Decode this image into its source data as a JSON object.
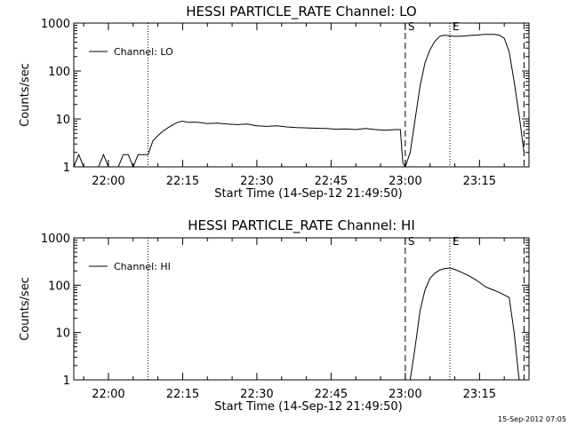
{
  "timestamp": "15-Sep-2012 07:05",
  "chart_data": [
    {
      "type": "line",
      "title": "HESSI PARTICLE_RATE Channel: LO",
      "xlabel": "Start Time (14-Sep-12 21:49:50)",
      "ylabel": "Counts/sec",
      "yscale": "log",
      "ylim": [
        1,
        1000
      ],
      "xlim": [
        "21:53",
        "23:25"
      ],
      "xticks": [
        "22:00",
        "22:15",
        "22:30",
        "22:45",
        "23:00",
        "23:15"
      ],
      "yticks": [
        "1",
        "10",
        "100",
        "1000"
      ],
      "grid": false,
      "legend": {
        "position": "top-left",
        "entries": [
          "Channel: LO"
        ]
      },
      "vlines": [
        {
          "time": "22:08",
          "style": "dotted",
          "label": ""
        },
        {
          "time": "23:00",
          "style": "dashed",
          "label": "S"
        },
        {
          "time": "23:09",
          "style": "dotted",
          "label": "E"
        },
        {
          "time": "23:24",
          "style": "dashed",
          "label": ""
        },
        {
          "time": "23:25",
          "style": "dotted",
          "label": ""
        }
      ],
      "series": [
        {
          "name": "Channel: LO",
          "points": [
            [
              "21:53",
              1
            ],
            [
              "21:54",
              1.8
            ],
            [
              "21:55",
              1
            ],
            [
              "21:56",
              1
            ],
            [
              "21:57",
              1
            ],
            [
              "21:58",
              1
            ],
            [
              "21:59",
              1.8
            ],
            [
              "22:00",
              1
            ],
            [
              "22:01",
              1
            ],
            [
              "22:02",
              1
            ],
            [
              "22:03",
              1.8
            ],
            [
              "22:04",
              1.8
            ],
            [
              "22:05",
              1
            ],
            [
              "22:06",
              1.8
            ],
            [
              "22:07",
              1.8
            ],
            [
              "22:08",
              1.8
            ],
            [
              "22:09",
              3.5
            ],
            [
              "22:10",
              4.5
            ],
            [
              "22:11",
              5.5
            ],
            [
              "22:12",
              6.5
            ],
            [
              "22:13",
              7.5
            ],
            [
              "22:14",
              8.5
            ],
            [
              "22:15",
              9
            ],
            [
              "22:16",
              8.5
            ],
            [
              "22:18",
              8.5
            ],
            [
              "22:20",
              8
            ],
            [
              "22:22",
              8.2
            ],
            [
              "22:24",
              7.8
            ],
            [
              "22:26",
              7.6
            ],
            [
              "22:28",
              7.8
            ],
            [
              "22:30",
              7.2
            ],
            [
              "22:32",
              7
            ],
            [
              "22:34",
              7.2
            ],
            [
              "22:36",
              6.8
            ],
            [
              "22:38",
              6.6
            ],
            [
              "22:40",
              6.5
            ],
            [
              "22:42",
              6.4
            ],
            [
              "22:44",
              6.3
            ],
            [
              "22:46",
              6.1
            ],
            [
              "22:48",
              6.2
            ],
            [
              "22:50",
              6
            ],
            [
              "22:52",
              6.3
            ],
            [
              "22:54",
              6
            ],
            [
              "22:56",
              5.8
            ],
            [
              "22:58",
              6
            ],
            [
              "22:59",
              6
            ],
            [
              "22:59.5",
              1.2
            ],
            [
              "23:00",
              1
            ],
            [
              "23:01",
              2
            ],
            [
              "23:02",
              10
            ],
            [
              "23:03",
              50
            ],
            [
              "23:04",
              150
            ],
            [
              "23:05",
              280
            ],
            [
              "23:06",
              420
            ],
            [
              "23:07",
              530
            ],
            [
              "23:08",
              560
            ],
            [
              "23:09",
              540
            ],
            [
              "23:10",
              530
            ],
            [
              "23:11",
              530
            ],
            [
              "23:12",
              540
            ],
            [
              "23:13",
              550
            ],
            [
              "23:14",
              560
            ],
            [
              "23:15",
              570
            ],
            [
              "23:16",
              580
            ],
            [
              "23:17",
              580
            ],
            [
              "23:18",
              580
            ],
            [
              "23:19",
              560
            ],
            [
              "23:20",
              480
            ],
            [
              "23:21",
              250
            ],
            [
              "23:22",
              60
            ],
            [
              "23:23",
              12
            ],
            [
              "23:24",
              2
            ]
          ]
        }
      ]
    },
    {
      "type": "line",
      "title": "HESSI PARTICLE_RATE Channel: HI",
      "xlabel": "Start Time (14-Sep-12 21:49:50)",
      "ylabel": "Counts/sec",
      "yscale": "log",
      "ylim": [
        1,
        1000
      ],
      "xlim": [
        "21:53",
        "23:25"
      ],
      "xticks": [
        "22:00",
        "22:15",
        "22:30",
        "22:45",
        "23:00",
        "23:15"
      ],
      "yticks": [
        "1",
        "10",
        "100",
        "1000"
      ],
      "grid": false,
      "legend": {
        "position": "top-left",
        "entries": [
          "Channel: HI"
        ]
      },
      "vlines": [
        {
          "time": "22:08",
          "style": "dotted",
          "label": ""
        },
        {
          "time": "23:00",
          "style": "dashed",
          "label": "S"
        },
        {
          "time": "23:09",
          "style": "dotted",
          "label": "E"
        },
        {
          "time": "23:24",
          "style": "dashed",
          "label": ""
        },
        {
          "time": "23:25",
          "style": "dotted",
          "label": ""
        }
      ],
      "series": [
        {
          "name": "Channel: HI",
          "points": [
            [
              "23:01",
              1
            ],
            [
              "23:02",
              5
            ],
            [
              "23:03",
              30
            ],
            [
              "23:04",
              80
            ],
            [
              "23:05",
              140
            ],
            [
              "23:06",
              180
            ],
            [
              "23:07",
              210
            ],
            [
              "23:08",
              225
            ],
            [
              "23:09",
              230
            ],
            [
              "23:10",
              215
            ],
            [
              "23:11",
              195
            ],
            [
              "23:12",
              175
            ],
            [
              "23:13",
              155
            ],
            [
              "23:14",
              135
            ],
            [
              "23:15",
              115
            ],
            [
              "23:16",
              95
            ],
            [
              "23:17",
              85
            ],
            [
              "23:18",
              78
            ],
            [
              "23:19",
              70
            ],
            [
              "23:20",
              62
            ],
            [
              "23:21",
              55
            ],
            [
              "23:22",
              10
            ],
            [
              "23:23",
              1
            ]
          ]
        }
      ]
    }
  ]
}
